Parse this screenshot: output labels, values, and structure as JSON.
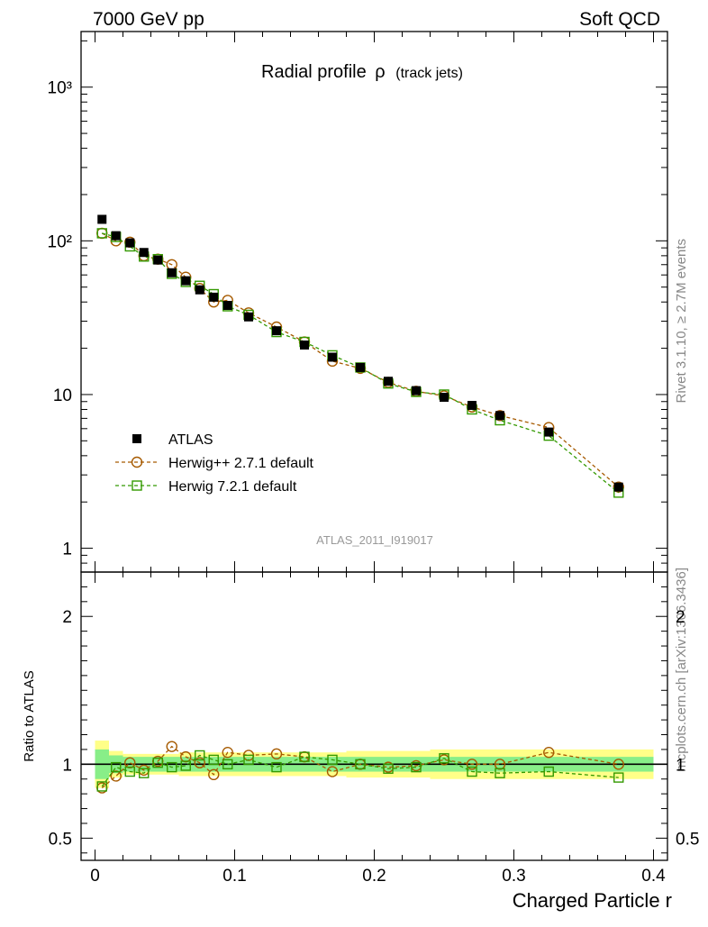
{
  "header": {
    "left": "7000 GeV pp",
    "right": "Soft QCD"
  },
  "side_text": {
    "top": "Rivet 3.1.10, ≥ 2.7M events",
    "bottom": "mcplots.cern.ch [arXiv:1306.3436]"
  },
  "watermark": "ATLAS_2011_I919017",
  "chart_data": [
    {
      "panel": "main",
      "type": "scatter",
      "title": "Radial profile",
      "title_symbol": "ρ",
      "title_suffix": "(track jets)",
      "xlabel": "",
      "ylabel": "",
      "yscale": "log",
      "xlim": [
        -0.01,
        0.41
      ],
      "ylim": [
        0.7,
        2300
      ],
      "ytick_labels": {
        "1000": "10³",
        "100": "10²",
        "10": "10",
        "1": "1"
      },
      "legend_position": "lower-left",
      "x": [
        0.005,
        0.015,
        0.025,
        0.035,
        0.045,
        0.055,
        0.065,
        0.075,
        0.085,
        0.095,
        0.11,
        0.13,
        0.15,
        0.17,
        0.19,
        0.21,
        0.23,
        0.25,
        0.27,
        0.29,
        0.325,
        0.375
      ],
      "series": [
        {
          "name": "ATLAS",
          "color": "#000000",
          "marker": "square-filled",
          "values": [
            138,
            108,
            97,
            84,
            75,
            62,
            55,
            48,
            43,
            38,
            32,
            26,
            21,
            17.5,
            15,
            12.2,
            10.6,
            9.6,
            8.5,
            7.3,
            5.7,
            2.5
          ]
        },
        {
          "name": "Herwig++ 2.7.1 default",
          "color": "#a65a00",
          "marker": "circle-open",
          "values": [
            112,
            100,
            98,
            80,
            76,
            70,
            58,
            49,
            40,
            41,
            34,
            27.5,
            22,
            16.5,
            14.8,
            12,
            10.5,
            9.8,
            8.3,
            7.3,
            6.1,
            2.5
          ]
        },
        {
          "name": "Herwig 7.2.1 default",
          "color": "#339900",
          "marker": "square-open",
          "values": [
            112,
            106,
            92,
            79,
            76,
            61,
            54,
            51,
            45,
            37.5,
            33,
            25.5,
            22,
            18,
            15,
            11.8,
            10.4,
            10,
            8,
            6.8,
            5.4,
            2.3
          ]
        }
      ]
    },
    {
      "panel": "ratio",
      "type": "line",
      "title": "",
      "xlabel": "Charged Particle r",
      "ylabel": "Ratio to ATLAS",
      "xlim": [
        -0.01,
        0.41
      ],
      "ylim": [
        0.35,
        2.3
      ],
      "xticks": [
        0,
        0.1,
        0.2,
        0.3,
        0.4
      ],
      "xtick_labels": [
        "0",
        "0.1",
        "0.2",
        "0.3",
        "0.4"
      ],
      "yticks": [
        0.5,
        1,
        2
      ],
      "ytick_labels": [
        "0.5",
        "1",
        "2"
      ],
      "x": [
        0.005,
        0.015,
        0.025,
        0.035,
        0.045,
        0.055,
        0.065,
        0.075,
        0.085,
        0.095,
        0.11,
        0.13,
        0.15,
        0.17,
        0.19,
        0.21,
        0.23,
        0.25,
        0.27,
        0.29,
        0.325,
        0.375
      ],
      "band_edges": [
        0,
        0.01,
        0.02,
        0.03,
        0.04,
        0.05,
        0.06,
        0.07,
        0.08,
        0.09,
        0.1,
        0.12,
        0.14,
        0.16,
        0.18,
        0.2,
        0.22,
        0.24,
        0.26,
        0.28,
        0.3,
        0.35,
        0.4
      ],
      "band_inner": [
        0.1,
        0.06,
        0.05,
        0.05,
        0.05,
        0.05,
        0.05,
        0.05,
        0.05,
        0.05,
        0.05,
        0.05,
        0.05,
        0.05,
        0.05,
        0.05,
        0.05,
        0.05,
        0.05,
        0.05,
        0.05,
        0.05
      ],
      "band_outer": [
        0.16,
        0.09,
        0.07,
        0.07,
        0.07,
        0.07,
        0.08,
        0.08,
        0.08,
        0.08,
        0.08,
        0.08,
        0.08,
        0.08,
        0.09,
        0.09,
        0.09,
        0.1,
        0.1,
        0.1,
        0.1,
        0.1
      ],
      "band_colors": {
        "inner": "#88ee88",
        "outer": "#ffff88"
      },
      "series": [
        {
          "name": "Herwig++ 2.7.1 default",
          "color": "#a65a00",
          "marker": "circle-open",
          "values": [
            0.84,
            0.92,
            1.01,
            0.96,
            1.02,
            1.12,
            1.05,
            1.01,
            0.93,
            1.08,
            1.06,
            1.07,
            1.05,
            0.95,
            1.0,
            0.98,
            0.99,
            1.03,
            1.0,
            1.0,
            1.08,
            1.0
          ]
        },
        {
          "name": "Herwig 7.2.1 default",
          "color": "#339900",
          "marker": "square-open",
          "values": [
            0.85,
            0.98,
            0.95,
            0.94,
            1.01,
            0.98,
            0.99,
            1.06,
            1.03,
            1.0,
            1.03,
            0.98,
            1.05,
            1.03,
            1.0,
            0.97,
            0.98,
            1.04,
            0.95,
            0.94,
            0.95,
            0.91
          ]
        }
      ]
    }
  ]
}
